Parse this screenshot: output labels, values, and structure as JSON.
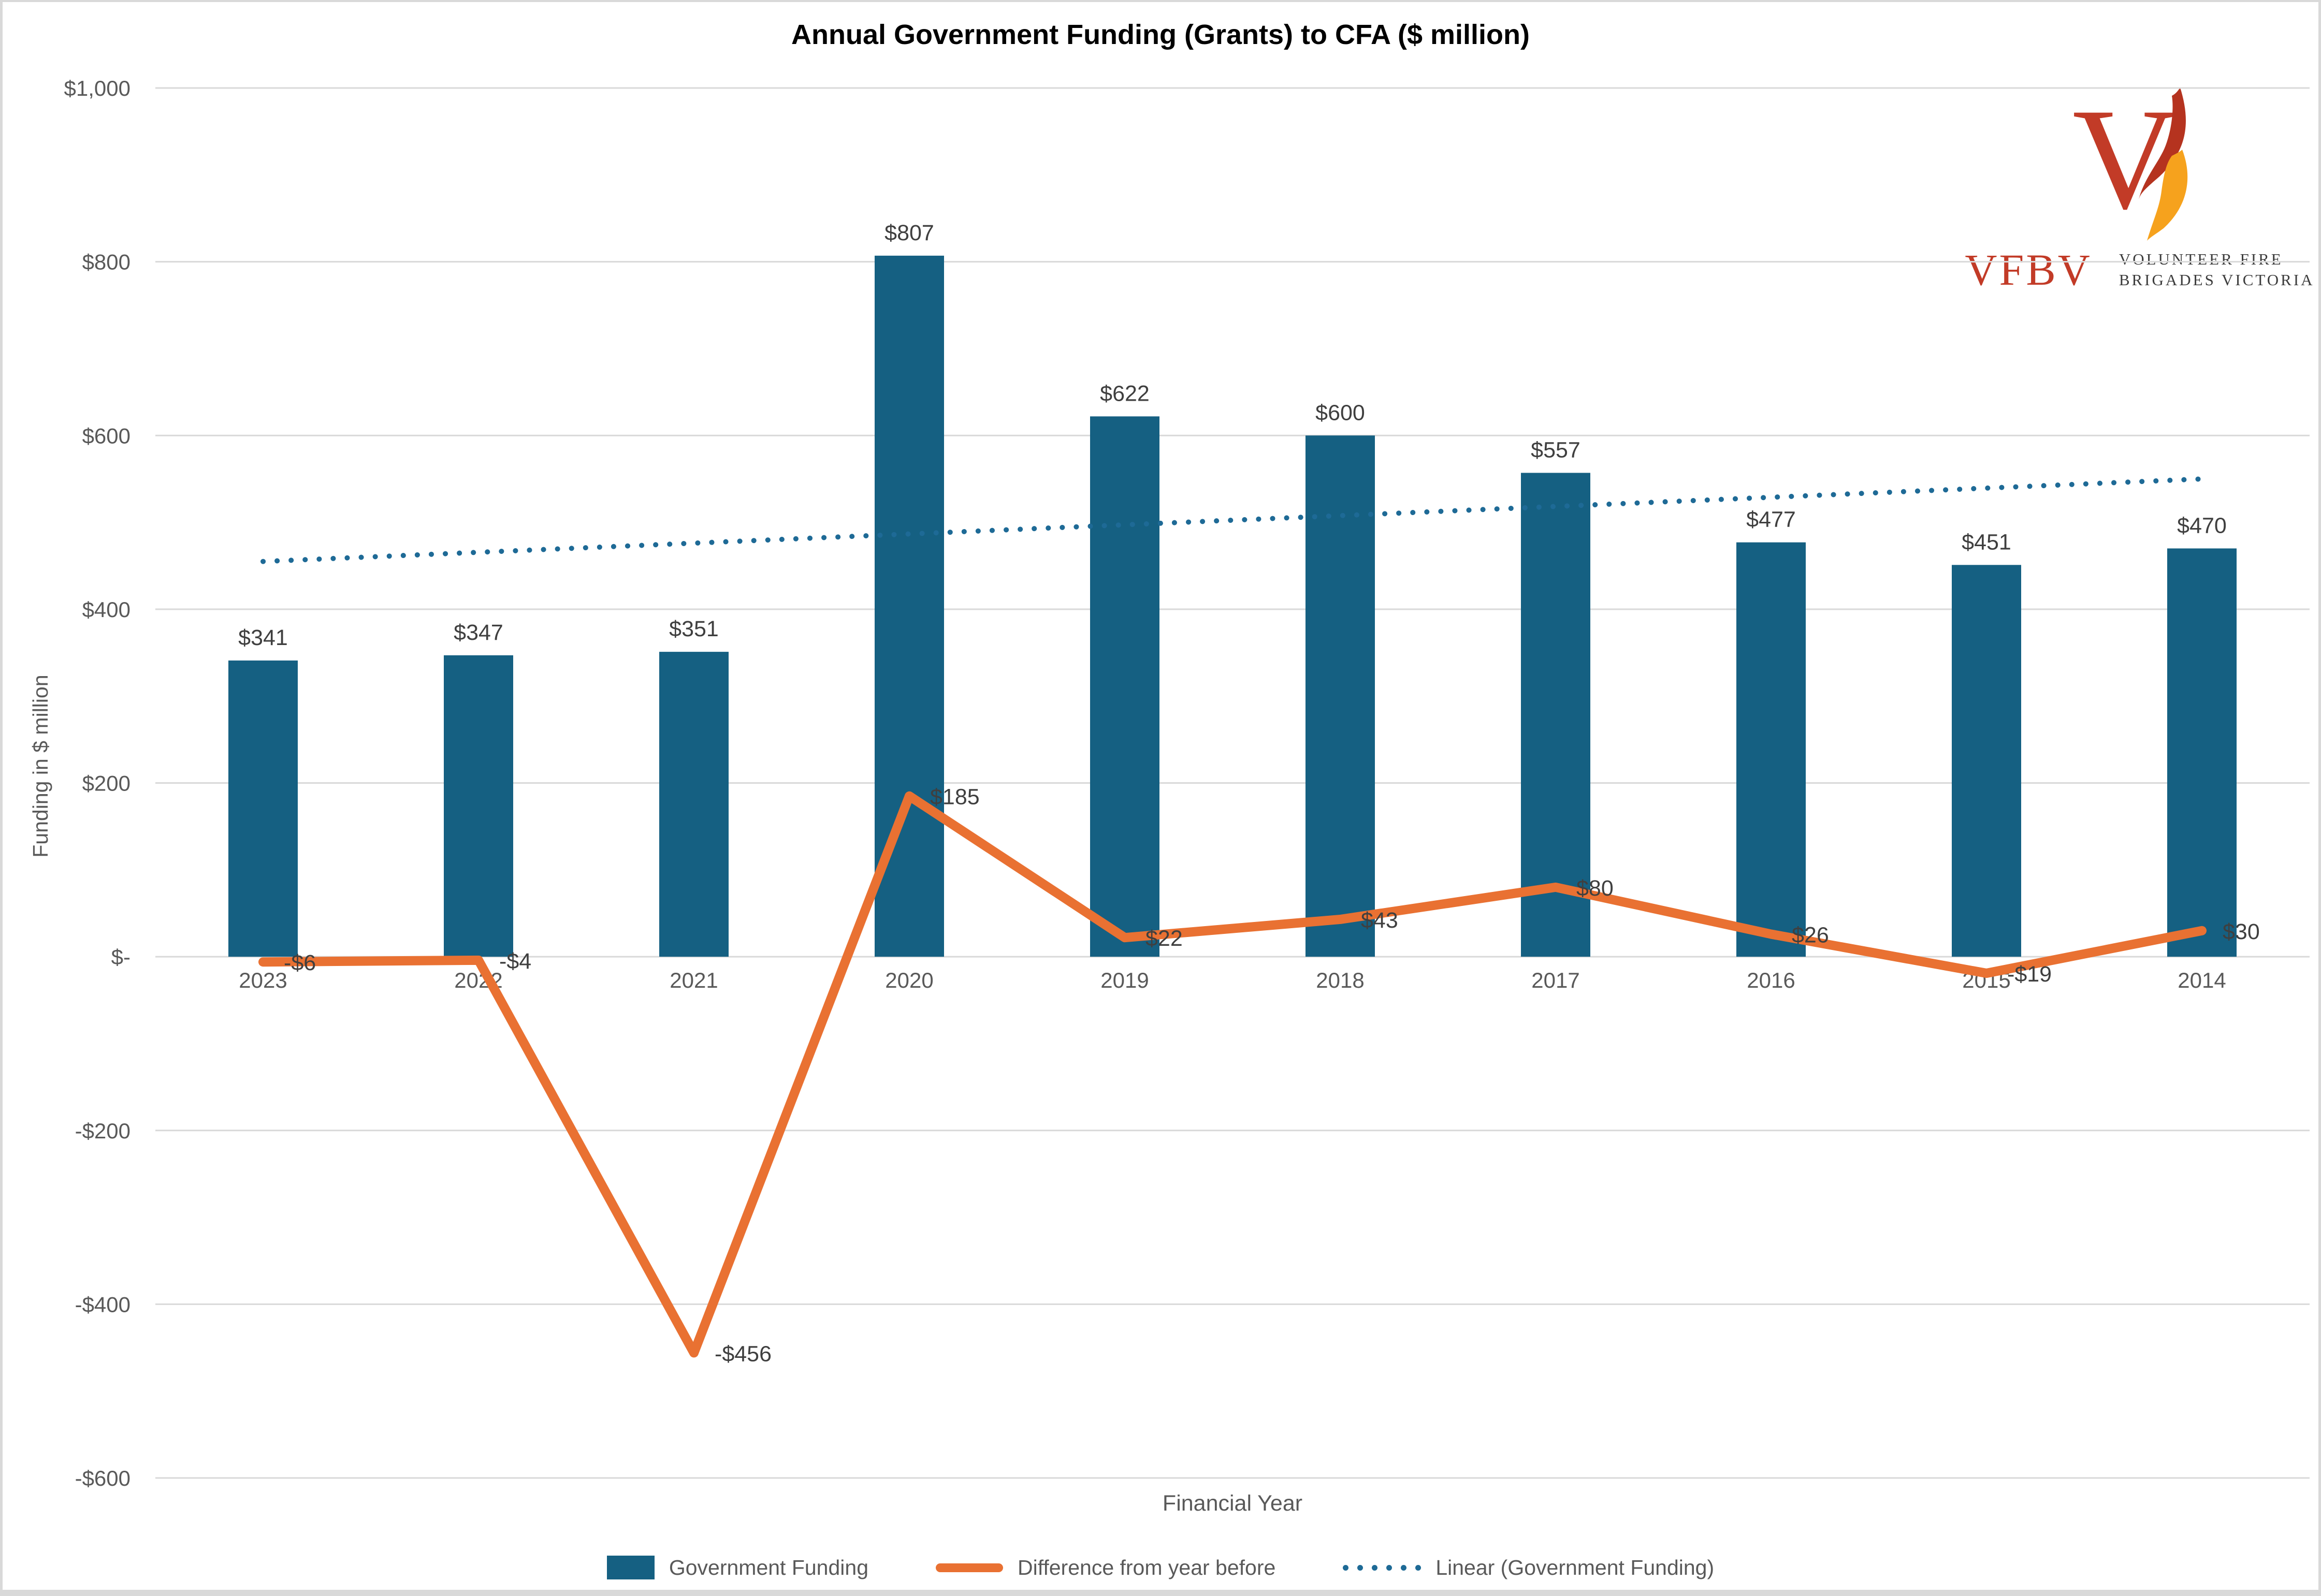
{
  "title": "Annual Government Funding (Grants) to CFA ($ million)",
  "logo": {
    "abbr": "VFBV",
    "name_line1": "VOLUNTEER FIRE",
    "name_line2": "BRIGADES VICTORIA",
    "colors": {
      "red": "#c23b27",
      "flame_dark": "#b5331f",
      "flame_orange": "#f6a21d"
    }
  },
  "chart_data": {
    "type": "bar",
    "title": "Annual Government Funding (Grants) to CFA ($ million)",
    "categories": [
      "2023",
      "2022",
      "2021",
      "2020",
      "2019",
      "2018",
      "2017",
      "2016",
      "2015",
      "2014"
    ],
    "series": [
      {
        "name": "Government Funding",
        "type": "bar",
        "color": "#156082",
        "values": [
          341,
          347,
          351,
          807,
          622,
          600,
          557,
          477,
          451,
          470
        ],
        "labels": [
          "$341",
          "$347",
          "$351",
          "$807",
          "$622",
          "$600",
          "$557",
          "$477",
          "$451",
          "$470"
        ]
      },
      {
        "name": "Difference from year before",
        "type": "line",
        "color": "#e97132",
        "values": [
          -6,
          -4,
          -456,
          185,
          22,
          43,
          80,
          26,
          -19,
          30
        ],
        "labels": [
          "-$6",
          "-$4",
          "-$456",
          "$185",
          "$22",
          "$43",
          "$80",
          "$26",
          "-$19",
          "$30"
        ]
      },
      {
        "name": "Linear (Government Funding)",
        "type": "trendline",
        "style": "dotted",
        "color": "#1e6a96",
        "start_value": 455,
        "end_value": 550
      }
    ],
    "xlabel": "Financial Year",
    "ylabel": "Funding in $ million",
    "ylim": [
      -600,
      1000
    ],
    "ytick_step": 200,
    "ytick_labels": [
      "$1,000",
      "$800",
      "$600",
      "$400",
      "$200",
      "$-",
      "-$200",
      "-$400",
      "-$600"
    ],
    "grid": "horizontal",
    "gridline_color": "#d9d9d9",
    "legend_position": "bottom",
    "tick_color": "#595959",
    "data_label_color": "#3f3f3f"
  },
  "legend": {
    "items": [
      {
        "label": "Government Funding"
      },
      {
        "label": "Difference from year before"
      },
      {
        "label": "Linear (Government Funding)"
      }
    ]
  }
}
